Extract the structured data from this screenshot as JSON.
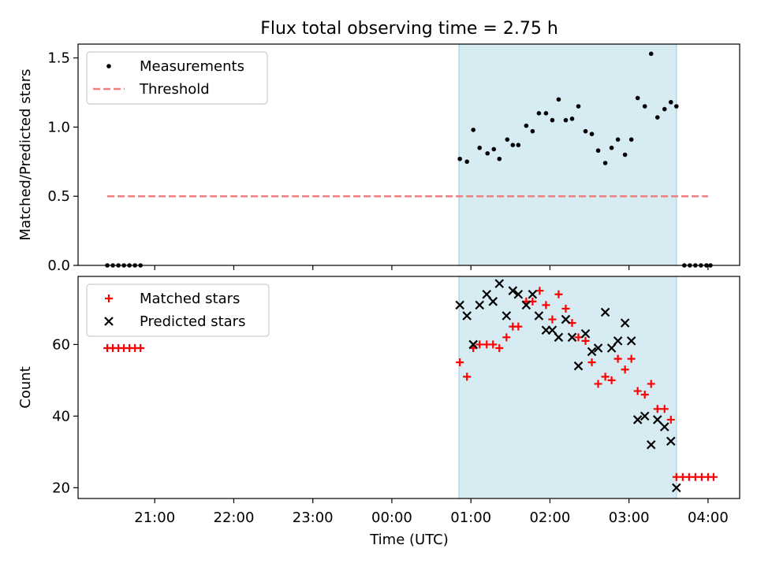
{
  "title": "Flux total observing time = 2.75 h",
  "xlabel": "Time (UTC)",
  "x_ticks": [
    "21:00",
    "22:00",
    "23:00",
    "00:00",
    "01:00",
    "02:00",
    "03:00",
    "04:00"
  ],
  "chart_data": [
    {
      "type": "scatter",
      "ylabel": "Matched/Predicted stars",
      "x_unit": "hours since 20:00 UTC of first night",
      "xlim": [
        0.03,
        8.4
      ],
      "ylim": [
        0,
        1.6
      ],
      "y_ticks": [
        0.0,
        0.5,
        1.0,
        1.5
      ],
      "y_tick_labels": [
        "0.0",
        "0.5",
        "1.0",
        "1.5"
      ],
      "legend": "top-left",
      "shaded_range": [
        4.85,
        7.6
      ],
      "series": [
        {
          "name": "Measurements",
          "kind": "dot",
          "color": "#000000",
          "points": [
            [
              0.4,
              0
            ],
            [
              0.47,
              0
            ],
            [
              0.54,
              0
            ],
            [
              0.61,
              0
            ],
            [
              0.68,
              0
            ],
            [
              0.75,
              0
            ],
            [
              0.82,
              0
            ],
            [
              4.86,
              0.77
            ],
            [
              4.95,
              0.75
            ],
            [
              5.03,
              0.98
            ],
            [
              5.11,
              0.85
            ],
            [
              5.21,
              0.81
            ],
            [
              5.29,
              0.84
            ],
            [
              5.36,
              0.77
            ],
            [
              5.46,
              0.91
            ],
            [
              5.53,
              0.87
            ],
            [
              5.6,
              0.87
            ],
            [
              5.7,
              1.01
            ],
            [
              5.78,
              0.97
            ],
            [
              5.86,
              1.1
            ],
            [
              5.95,
              1.1
            ],
            [
              6.03,
              1.05
            ],
            [
              6.11,
              1.2
            ],
            [
              6.2,
              1.05
            ],
            [
              6.28,
              1.06
            ],
            [
              6.36,
              1.15
            ],
            [
              6.45,
              0.97
            ],
            [
              6.53,
              0.95
            ],
            [
              6.61,
              0.83
            ],
            [
              6.7,
              0.74
            ],
            [
              6.78,
              0.85
            ],
            [
              6.86,
              0.91
            ],
            [
              6.95,
              0.8
            ],
            [
              7.03,
              0.91
            ],
            [
              7.11,
              1.21
            ],
            [
              7.2,
              1.15
            ],
            [
              7.28,
              1.53
            ],
            [
              7.36,
              1.07
            ],
            [
              7.45,
              1.13
            ],
            [
              7.53,
              1.18
            ],
            [
              7.6,
              1.15
            ],
            [
              7.7,
              0
            ],
            [
              7.77,
              0
            ],
            [
              7.84,
              0
            ],
            [
              7.91,
              0
            ],
            [
              7.98,
              0
            ],
            [
              8.03,
              0
            ]
          ]
        },
        {
          "name": "Threshold",
          "kind": "dashed-line",
          "color": "#f08080",
          "points": [
            [
              0.4,
              0.5
            ],
            [
              8.0,
              0.5
            ]
          ]
        }
      ]
    },
    {
      "type": "scatter",
      "ylabel": "Count",
      "x_unit": "hours since 20:00 UTC of first night",
      "xlim": [
        0.03,
        8.4
      ],
      "ylim": [
        17,
        79
      ],
      "y_ticks": [
        20,
        40,
        60
      ],
      "y_tick_labels": [
        "20",
        "40",
        "60"
      ],
      "legend": "top-left",
      "shaded_range": [
        4.85,
        7.6
      ],
      "series": [
        {
          "name": "Matched stars",
          "marker": "plus",
          "color": "#ff0000",
          "points": [
            [
              0.4,
              59
            ],
            [
              0.47,
              59
            ],
            [
              0.54,
              59
            ],
            [
              0.61,
              59
            ],
            [
              0.68,
              59
            ],
            [
              0.75,
              59
            ],
            [
              0.82,
              59
            ],
            [
              4.86,
              55
            ],
            [
              4.95,
              51
            ],
            [
              5.03,
              59
            ],
            [
              5.11,
              60
            ],
            [
              5.2,
              60
            ],
            [
              5.28,
              60
            ],
            [
              5.36,
              59
            ],
            [
              5.45,
              62
            ],
            [
              5.53,
              65
            ],
            [
              5.6,
              65
            ],
            [
              5.7,
              72
            ],
            [
              5.78,
              72
            ],
            [
              5.87,
              75
            ],
            [
              5.95,
              71
            ],
            [
              6.03,
              67
            ],
            [
              6.11,
              74
            ],
            [
              6.2,
              70
            ],
            [
              6.28,
              66
            ],
            [
              6.36,
              62
            ],
            [
              6.45,
              61
            ],
            [
              6.53,
              55
            ],
            [
              6.61,
              49
            ],
            [
              6.7,
              51
            ],
            [
              6.78,
              50
            ],
            [
              6.86,
              56
            ],
            [
              6.95,
              53
            ],
            [
              7.03,
              56
            ],
            [
              7.11,
              47
            ],
            [
              7.2,
              46
            ],
            [
              7.28,
              49
            ],
            [
              7.36,
              42
            ],
            [
              7.45,
              42
            ],
            [
              7.53,
              39
            ],
            [
              7.6,
              23
            ],
            [
              7.68,
              23
            ],
            [
              7.76,
              23
            ],
            [
              7.84,
              23
            ],
            [
              7.92,
              23
            ],
            [
              8.0,
              23
            ],
            [
              8.07,
              23
            ]
          ]
        },
        {
          "name": "Predicted stars",
          "marker": "x",
          "color": "#000000",
          "points": [
            [
              4.86,
              71
            ],
            [
              4.95,
              68
            ],
            [
              5.03,
              60
            ],
            [
              5.11,
              71
            ],
            [
              5.2,
              74
            ],
            [
              5.28,
              72
            ],
            [
              5.36,
              77
            ],
            [
              5.45,
              68
            ],
            [
              5.53,
              75
            ],
            [
              5.6,
              74
            ],
            [
              5.7,
              71
            ],
            [
              5.78,
              74
            ],
            [
              5.86,
              68
            ],
            [
              5.95,
              64
            ],
            [
              6.03,
              64
            ],
            [
              6.11,
              62
            ],
            [
              6.2,
              67
            ],
            [
              6.28,
              62
            ],
            [
              6.36,
              54
            ],
            [
              6.45,
              63
            ],
            [
              6.53,
              58
            ],
            [
              6.61,
              59
            ],
            [
              6.7,
              69
            ],
            [
              6.78,
              59
            ],
            [
              6.86,
              61
            ],
            [
              6.95,
              66
            ],
            [
              7.03,
              61
            ],
            [
              7.11,
              39
            ],
            [
              7.2,
              40
            ],
            [
              7.28,
              32
            ],
            [
              7.36,
              39
            ],
            [
              7.45,
              37
            ],
            [
              7.53,
              33
            ],
            [
              7.6,
              20
            ]
          ]
        }
      ]
    }
  ]
}
